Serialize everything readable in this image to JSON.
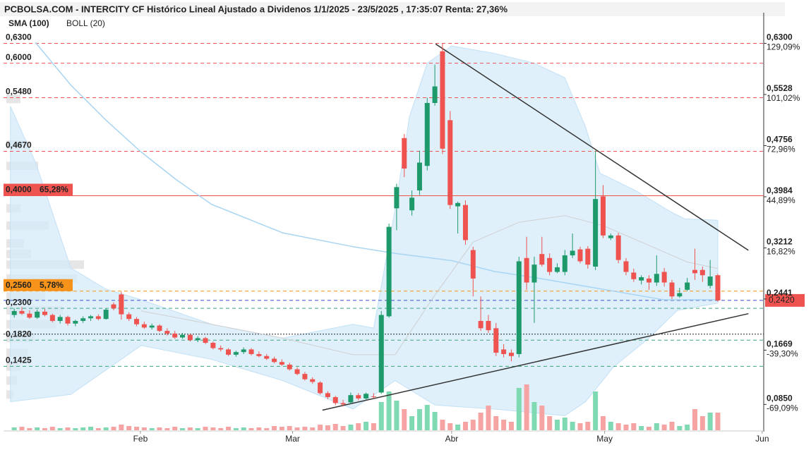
{
  "chart_data": {
    "type": "candlestick",
    "title": "PCBOLSA.COM - INTERCITY CF Histórico Lineal Ajustado a Dividenos 1/1/2025 - 23/5/2025 , 17:35:07 Renta: 27,36%",
    "xlim": [
      -1.4,
      98
    ],
    "ylim": [
      0.046,
      0.672
    ],
    "xticks": [
      {
        "value": 16.5,
        "label": "Feb"
      },
      {
        "value": 36.4,
        "label": "Mar"
      },
      {
        "value": 57.2,
        "label": "Abr"
      },
      {
        "value": 77.2,
        "label": "May"
      },
      {
        "value": 97.8,
        "label": "Jun"
      }
    ],
    "yticks": [
      {
        "value": 0.63,
        "label": "0,6300"
      },
      {
        "value": 0.5528,
        "label": "0,5528"
      },
      {
        "value": 0.4756,
        "label": "0,4756"
      },
      {
        "value": 0.3984,
        "label": "0,3984"
      },
      {
        "value": 0.3212,
        "label": "0,3212"
      },
      {
        "value": 0.2441,
        "label": "0,2441"
      },
      {
        "value": 0.1669,
        "label": "0,1669"
      },
      {
        "value": 0.085,
        "label": "0,0850"
      }
    ],
    "ytick_pct": [
      "129,09%",
      "101,02%",
      "72,96%",
      "44,89%",
      "16,82%",
      null,
      "-39,30%",
      "-69,09%"
    ],
    "up_color": "#1e9a6a",
    "down_color": "#ef5350",
    "volume_up_color": "#7fd9b2",
    "volume_down_color": "#f6a3a3",
    "candles": [
      {
        "open": 0.22,
        "high": 0.23,
        "low": 0.216,
        "close": 0.226,
        "volume": 4
      },
      {
        "open": 0.226,
        "high": 0.232,
        "low": 0.22,
        "close": 0.222,
        "volume": 5
      },
      {
        "open": 0.222,
        "high": 0.227,
        "low": 0.214,
        "close": 0.216,
        "volume": 3
      },
      {
        "open": 0.216,
        "high": 0.228,
        "low": 0.214,
        "close": 0.225,
        "volume": 4
      },
      {
        "open": 0.225,
        "high": 0.229,
        "low": 0.218,
        "close": 0.22,
        "volume": 3
      },
      {
        "open": 0.22,
        "high": 0.222,
        "low": 0.209,
        "close": 0.211,
        "volume": 5
      },
      {
        "open": 0.211,
        "high": 0.22,
        "low": 0.207,
        "close": 0.217,
        "volume": 3
      },
      {
        "open": 0.217,
        "high": 0.219,
        "low": 0.204,
        "close": 0.207,
        "volume": 4
      },
      {
        "open": 0.207,
        "high": 0.213,
        "low": 0.203,
        "close": 0.211,
        "volume": 3
      },
      {
        "open": 0.211,
        "high": 0.218,
        "low": 0.208,
        "close": 0.215,
        "volume": 4
      },
      {
        "open": 0.215,
        "high": 0.22,
        "low": 0.211,
        "close": 0.218,
        "volume": 5
      },
      {
        "open": 0.218,
        "high": 0.221,
        "low": 0.212,
        "close": 0.214,
        "volume": 3
      },
      {
        "open": 0.214,
        "high": 0.23,
        "low": 0.213,
        "close": 0.228,
        "volume": 4
      },
      {
        "open": 0.236,
        "high": 0.239,
        "low": 0.227,
        "close": 0.23,
        "volume": 5
      },
      {
        "open": 0.251,
        "high": 0.255,
        "low": 0.213,
        "close": 0.221,
        "volume": 8
      },
      {
        "open": 0.221,
        "high": 0.224,
        "low": 0.211,
        "close": 0.214,
        "volume": 6
      },
      {
        "open": 0.214,
        "high": 0.217,
        "low": 0.203,
        "close": 0.206,
        "volume": 5
      },
      {
        "open": 0.206,
        "high": 0.21,
        "low": 0.199,
        "close": 0.201,
        "volume": 4
      },
      {
        "open": 0.201,
        "high": 0.207,
        "low": 0.198,
        "close": 0.204,
        "volume": 3
      },
      {
        "open": 0.204,
        "high": 0.206,
        "low": 0.194,
        "close": 0.196,
        "volume": 4
      },
      {
        "open": 0.196,
        "high": 0.2,
        "low": 0.189,
        "close": 0.192,
        "volume": 3
      },
      {
        "open": 0.192,
        "high": 0.196,
        "low": 0.184,
        "close": 0.186,
        "volume": 5
      },
      {
        "open": 0.186,
        "high": 0.193,
        "low": 0.184,
        "close": 0.19,
        "volume": 3
      },
      {
        "open": 0.19,
        "high": 0.192,
        "low": 0.18,
        "close": 0.182,
        "volume": 4
      },
      {
        "open": 0.182,
        "high": 0.188,
        "low": 0.179,
        "close": 0.185,
        "volume": 3
      },
      {
        "open": 0.185,
        "high": 0.187,
        "low": 0.176,
        "close": 0.178,
        "volume": 5
      },
      {
        "open": 0.178,
        "high": 0.18,
        "low": 0.168,
        "close": 0.17,
        "volume": 4
      },
      {
        "open": 0.17,
        "high": 0.174,
        "low": 0.165,
        "close": 0.168,
        "volume": 3
      },
      {
        "open": 0.168,
        "high": 0.17,
        "low": 0.158,
        "close": 0.16,
        "volume": 5
      },
      {
        "open": 0.16,
        "high": 0.166,
        "low": 0.157,
        "close": 0.164,
        "volume": 3
      },
      {
        "open": 0.164,
        "high": 0.171,
        "low": 0.161,
        "close": 0.168,
        "volume": 4
      },
      {
        "open": 0.168,
        "high": 0.17,
        "low": 0.159,
        "close": 0.161,
        "volume": 3
      },
      {
        "open": 0.161,
        "high": 0.165,
        "low": 0.156,
        "close": 0.158,
        "volume": 4
      },
      {
        "open": 0.158,
        "high": 0.161,
        "low": 0.152,
        "close": 0.154,
        "volume": 3
      },
      {
        "open": 0.154,
        "high": 0.157,
        "low": 0.147,
        "close": 0.149,
        "volume": 6
      },
      {
        "open": 0.149,
        "high": 0.153,
        "low": 0.143,
        "close": 0.145,
        "volume": 5
      },
      {
        "open": 0.145,
        "high": 0.148,
        "low": 0.136,
        "close": 0.138,
        "volume": 6
      },
      {
        "open": 0.138,
        "high": 0.141,
        "low": 0.129,
        "close": 0.131,
        "volume": 4
      },
      {
        "open": 0.131,
        "high": 0.134,
        "low": 0.121,
        "close": 0.123,
        "volume": 5
      },
      {
        "open": 0.123,
        "high": 0.126,
        "low": 0.116,
        "close": 0.119,
        "volume": 4
      },
      {
        "open": 0.118,
        "high": 0.12,
        "low": 0.1,
        "close": 0.102,
        "volume": 8
      },
      {
        "open": 0.102,
        "high": 0.105,
        "low": 0.093,
        "close": 0.096,
        "volume": 7
      },
      {
        "open": 0.096,
        "high": 0.098,
        "low": 0.084,
        "close": 0.087,
        "volume": 9
      },
      {
        "open": 0.087,
        "high": 0.092,
        "low": 0.082,
        "close": 0.085,
        "volume": 6
      },
      {
        "open": 0.088,
        "high": 0.103,
        "low": 0.086,
        "close": 0.099,
        "volume": 8
      },
      {
        "open": 0.099,
        "high": 0.102,
        "low": 0.091,
        "close": 0.094,
        "volume": 10
      },
      {
        "open": 0.094,
        "high": 0.103,
        "low": 0.092,
        "close": 0.101,
        "volume": 12
      },
      {
        "open": 0.097,
        "high": 0.102,
        "low": 0.094,
        "close": 0.096,
        "volume": 10
      },
      {
        "open": 0.103,
        "high": 0.226,
        "low": 0.101,
        "close": 0.22,
        "volume": 40
      },
      {
        "open": 0.218,
        "high": 0.358,
        "low": 0.216,
        "close": 0.353,
        "volume": 55
      },
      {
        "open": 0.381,
        "high": 0.418,
        "low": 0.348,
        "close": 0.413,
        "volume": 42
      },
      {
        "open": 0.487,
        "high": 0.493,
        "low": 0.428,
        "close": 0.441,
        "volume": 30
      },
      {
        "open": 0.378,
        "high": 0.408,
        "low": 0.37,
        "close": 0.397,
        "volume": 20
      },
      {
        "open": 0.408,
        "high": 0.468,
        "low": 0.401,
        "close": 0.45,
        "volume": 30
      },
      {
        "open": 0.445,
        "high": 0.548,
        "low": 0.438,
        "close": 0.54,
        "volume": 36
      },
      {
        "open": 0.54,
        "high": 0.598,
        "low": 0.536,
        "close": 0.565,
        "volume": 26
      },
      {
        "open": 0.618,
        "high": 0.63,
        "low": 0.463,
        "close": 0.471,
        "volume": 15
      },
      {
        "open": 0.514,
        "high": 0.528,
        "low": 0.38,
        "close": 0.386,
        "volume": 10
      },
      {
        "open": 0.384,
        "high": 0.391,
        "low": 0.343,
        "close": 0.389,
        "volume": 8
      },
      {
        "open": 0.386,
        "high": 0.393,
        "low": 0.326,
        "close": 0.333,
        "volume": 12
      },
      {
        "open": 0.318,
        "high": 0.323,
        "low": 0.248,
        "close": 0.275,
        "volume": 15
      },
      {
        "open": 0.211,
        "high": 0.248,
        "low": 0.196,
        "close": 0.2,
        "volume": 25
      },
      {
        "open": 0.211,
        "high": 0.22,
        "low": 0.193,
        "close": 0.197,
        "volume": 35
      },
      {
        "open": 0.2,
        "high": 0.208,
        "low": 0.158,
        "close": 0.163,
        "volume": 20
      },
      {
        "open": 0.168,
        "high": 0.176,
        "low": 0.156,
        "close": 0.161,
        "volume": 15
      },
      {
        "open": 0.163,
        "high": 0.168,
        "low": 0.15,
        "close": 0.158,
        "volume": 12
      },
      {
        "open": 0.161,
        "high": 0.308,
        "low": 0.156,
        "close": 0.301,
        "volume": 60
      },
      {
        "open": 0.306,
        "high": 0.338,
        "low": 0.258,
        "close": 0.269,
        "volume": 65
      },
      {
        "open": 0.269,
        "high": 0.308,
        "low": 0.208,
        "close": 0.296,
        "volume": 40
      },
      {
        "open": 0.312,
        "high": 0.338,
        "low": 0.293,
        "close": 0.296,
        "volume": 35
      },
      {
        "open": 0.306,
        "high": 0.313,
        "low": 0.28,
        "close": 0.285,
        "volume": 20
      },
      {
        "open": 0.285,
        "high": 0.298,
        "low": 0.283,
        "close": 0.292,
        "volume": 15
      },
      {
        "open": 0.285,
        "high": 0.318,
        "low": 0.28,
        "close": 0.31,
        "volume": 18
      },
      {
        "open": 0.31,
        "high": 0.343,
        "low": 0.306,
        "close": 0.317,
        "volume": 12
      },
      {
        "open": 0.319,
        "high": 0.323,
        "low": 0.298,
        "close": 0.301,
        "volume": 10
      },
      {
        "open": 0.32,
        "high": 0.324,
        "low": 0.29,
        "close": 0.296,
        "volume": 12
      },
      {
        "open": 0.293,
        "high": 0.468,
        "low": 0.288,
        "close": 0.395,
        "volume": 55
      },
      {
        "open": 0.399,
        "high": 0.416,
        "low": 0.336,
        "close": 0.34,
        "volume": 20
      },
      {
        "open": 0.336,
        "high": 0.343,
        "low": 0.333,
        "close": 0.34,
        "volume": 12
      },
      {
        "open": 0.34,
        "high": 0.344,
        "low": 0.298,
        "close": 0.303,
        "volume": 10
      },
      {
        "open": 0.301,
        "high": 0.306,
        "low": 0.28,
        "close": 0.285,
        "volume": 8
      },
      {
        "open": 0.284,
        "high": 0.29,
        "low": 0.27,
        "close": 0.274,
        "volume": 10
      },
      {
        "open": 0.272,
        "high": 0.28,
        "low": 0.266,
        "close": 0.277,
        "volume": 6
      },
      {
        "open": 0.275,
        "high": 0.28,
        "low": 0.258,
        "close": 0.269,
        "volume": 5
      },
      {
        "open": 0.269,
        "high": 0.31,
        "low": 0.264,
        "close": 0.282,
        "volume": 10
      },
      {
        "open": 0.285,
        "high": 0.291,
        "low": 0.263,
        "close": 0.269,
        "volume": 8
      },
      {
        "open": 0.269,
        "high": 0.273,
        "low": 0.244,
        "close": 0.248,
        "volume": 12
      },
      {
        "open": 0.248,
        "high": 0.261,
        "low": 0.246,
        "close": 0.253,
        "volume": 6
      },
      {
        "open": 0.258,
        "high": 0.276,
        "low": 0.256,
        "close": 0.269,
        "volume": 8
      },
      {
        "open": 0.288,
        "high": 0.32,
        "low": 0.273,
        "close": 0.283,
        "volume": 30
      },
      {
        "open": 0.288,
        "high": 0.293,
        "low": 0.27,
        "close": 0.28,
        "volume": 20
      },
      {
        "open": 0.264,
        "high": 0.303,
        "low": 0.26,
        "close": 0.278,
        "volume": 25
      },
      {
        "open": 0.28,
        "high": 0.282,
        "low": 0.24,
        "close": 0.242,
        "volume": 25
      }
    ],
    "volume_profile": {
      "color": "#e6e6e6",
      "prices": [
        0.546,
        0.477,
        0.445,
        0.408,
        0.381,
        0.355,
        0.328,
        0.312,
        0.296,
        0.275,
        0.248,
        0.227,
        0.206,
        0.185,
        0.163,
        0.142,
        0.121,
        0.1
      ],
      "values": [
        20,
        30,
        45,
        55,
        20,
        60,
        25,
        35,
        110,
        100,
        55,
        80,
        70,
        40,
        30,
        20,
        15,
        10
      ]
    },
    "sma": {
      "name": "SMA (100)",
      "color": "#a9d5f2",
      "x": [
        2.8,
        7.4,
        12,
        16.6,
        21.2,
        25.8,
        35.1,
        44.3,
        49.8,
        57.2,
        62.7,
        68.3,
        73.8,
        79.4,
        84.9,
        92
      ],
      "values": [
        0.631,
        0.567,
        0.514,
        0.466,
        0.424,
        0.387,
        0.344,
        0.323,
        0.313,
        0.302,
        0.286,
        0.276,
        0.265,
        0.254,
        0.243,
        0.243
      ]
    },
    "bollinger": {
      "name": "BOLL (20)",
      "color": "#d4ebfa",
      "upper": {
        "x": [
          -0.5,
          2.8,
          7.4,
          12,
          16.6,
          25.8,
          35.1,
          44.3,
          47,
          49.8,
          51.7,
          54,
          57.2,
          62.7,
          68,
          72,
          74.7,
          76.6,
          81.2,
          85.8,
          87.7,
          92
        ],
        "values": [
          0.535,
          0.45,
          0.291,
          0.259,
          0.243,
          0.206,
          0.185,
          0.206,
          0.2,
          0.38,
          0.52,
          0.6,
          0.626,
          0.615,
          0.6,
          0.578,
          0.504,
          0.434,
          0.408,
          0.376,
          0.365,
          0.363
        ]
      },
      "lower": {
        "x": [
          -0.5,
          7.4,
          16.6,
          25.8,
          35.1,
          44.3,
          49.8,
          55,
          62.7,
          72,
          74.7,
          78.4,
          83,
          86.7,
          92
        ],
        "values": [
          0.089,
          0.1,
          0.174,
          0.153,
          0.121,
          0.078,
          0.121,
          0.084,
          0.078,
          0.068,
          0.089,
          0.142,
          0.185,
          0.227,
          0.238
        ]
      },
      "mid": {
        "x": [
          16.6,
          25.8,
          35.1,
          44.3,
          49.8,
          55,
          60,
          66,
          72,
          77,
          82,
          88,
          92
        ],
        "values": [
          0.226,
          0.206,
          0.185,
          0.16,
          0.16,
          0.25,
          0.33,
          0.36,
          0.37,
          0.355,
          0.33,
          0.3,
          0.29
        ]
      }
    },
    "trendlines": [
      {
        "x": [
          55.1,
          96
        ],
        "values": [
          0.629,
          0.3176
        ]
      },
      {
        "x": [
          40.3,
          96
        ],
        "values": [
          0.0763,
          0.222
        ]
      }
    ],
    "levels": [
      {
        "value": 0.63,
        "label": "0,6300",
        "color": "#ef5350",
        "style": "dashed"
      },
      {
        "value": 0.6,
        "label": "0,6000",
        "color": "#ef5350",
        "style": "dashed"
      },
      {
        "value": 0.548,
        "label": "0,5480",
        "color": "#ef5350",
        "style": "dashed"
      },
      {
        "value": 0.467,
        "label": "0,4670",
        "color": "#ef5350",
        "style": "dashed"
      },
      {
        "value": 0.4,
        "label": "0,4000",
        "pct": "65,28%",
        "color": "#ef5350",
        "style": "solid",
        "boxed": true
      },
      {
        "value": 0.256,
        "label": "0,2560",
        "pct": "5,78%",
        "color": "#f7931a",
        "style": "dashed",
        "boxed": true
      },
      {
        "value": 0.242,
        "label": "0,2420",
        "color": "#3b4fd0",
        "box_color": "#ef5350",
        "style": "dashed",
        "boxed": true,
        "side": "right"
      },
      {
        "value": 0.23,
        "label": "0,2300",
        "color": "#3aa57a",
        "style": "dashed"
      },
      {
        "value": 0.191,
        "color": "#222222",
        "style": "dotted"
      },
      {
        "value": 0.182,
        "label": "0,1820",
        "color": "#3aa57a",
        "style": "dashed"
      },
      {
        "value": 0.1425,
        "label": "0,1425",
        "color": "#3aa57a",
        "style": "dashed"
      }
    ]
  }
}
